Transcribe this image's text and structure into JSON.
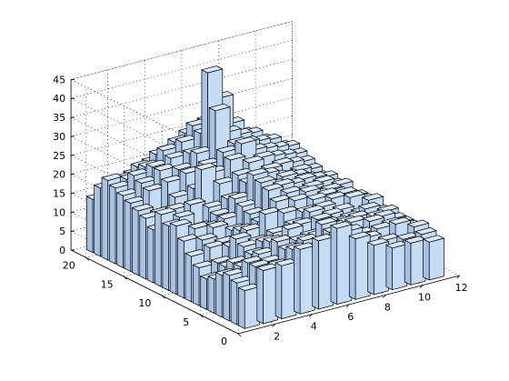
{
  "chart_data": {
    "type": "bar",
    "subtype": "bar3",
    "title": "",
    "xlabel": "",
    "ylabel": "",
    "zlabel": "",
    "x_ticks": [
      "2",
      "4",
      "6",
      "8",
      "10",
      "12"
    ],
    "y_ticks": [
      "0",
      "5",
      "10",
      "15",
      "20"
    ],
    "z_ticks": [
      "0",
      "5",
      "10",
      "15",
      "20",
      "25",
      "30",
      "35",
      "40",
      "45"
    ],
    "xlim": [
      0,
      12
    ],
    "ylim": [
      0,
      22
    ],
    "zlim": [
      0,
      45
    ],
    "grid": true,
    "colors": {
      "top": "#dbe8f8",
      "front": "#c6dbf4",
      "side": "#a7c2e2"
    },
    "x": [
      1,
      2,
      3,
      4,
      5,
      6,
      7,
      8,
      9,
      10,
      11
    ],
    "y": [
      1,
      2,
      3,
      4,
      5,
      6,
      7,
      8,
      9,
      10,
      11,
      12,
      13,
      14,
      15,
      16,
      17,
      18,
      19,
      20,
      21
    ],
    "values": [
      [
        10,
        14,
        14,
        17,
        18,
        20,
        16,
        13,
        11,
        11,
        10
      ],
      [
        11,
        14,
        13,
        16,
        15,
        18,
        17,
        14,
        12,
        11,
        11
      ],
      [
        12,
        14,
        13,
        15,
        16,
        19,
        16,
        14,
        14,
        14,
        12
      ],
      [
        11,
        12,
        14,
        16,
        15,
        15,
        16,
        16,
        15,
        13,
        11
      ],
      [
        9,
        12,
        13,
        15,
        17,
        14,
        16,
        15,
        13,
        14,
        11
      ],
      [
        8,
        10,
        14,
        14,
        13,
        16,
        16,
        14,
        14,
        13,
        11
      ],
      [
        10,
        10,
        15,
        13,
        14,
        15,
        17,
        15,
        13,
        14,
        12
      ],
      [
        12,
        13,
        12,
        15,
        18,
        17,
        16,
        16,
        14,
        12,
        11
      ],
      [
        15,
        14,
        12,
        14,
        15,
        19,
        18,
        17,
        16,
        15,
        13
      ],
      [
        18,
        16,
        15,
        13,
        16,
        21,
        19,
        18,
        16,
        15,
        12
      ],
      [
        17,
        14,
        14,
        15,
        17,
        22,
        20,
        17,
        15,
        14,
        12
      ],
      [
        19,
        17,
        13,
        15,
        18,
        23,
        19,
        18,
        16,
        14,
        11
      ],
      [
        14,
        18,
        18,
        16,
        17,
        20,
        21,
        19,
        17,
        15,
        13
      ],
      [
        16,
        12,
        16,
        25,
        20,
        21,
        19,
        18,
        17,
        15,
        12
      ],
      [
        17,
        15,
        18,
        19,
        22,
        24,
        22,
        19,
        16,
        14,
        13
      ],
      [
        18,
        20,
        21,
        22,
        23,
        25,
        26,
        21,
        18,
        15,
        12
      ],
      [
        19,
        21,
        23,
        22,
        25,
        35,
        25,
        22,
        19,
        16,
        13
      ],
      [
        20,
        22,
        23,
        24,
        24,
        44,
        27,
        23,
        20,
        17,
        14
      ],
      [
        21,
        20,
        22,
        25,
        26,
        27,
        35,
        24,
        21,
        18,
        15
      ],
      [
        18,
        19,
        21,
        23,
        25,
        28,
        29,
        26,
        22,
        19,
        16
      ],
      [
        14,
        16,
        18,
        20,
        22,
        25,
        27,
        25,
        21,
        18,
        15
      ]
    ]
  }
}
